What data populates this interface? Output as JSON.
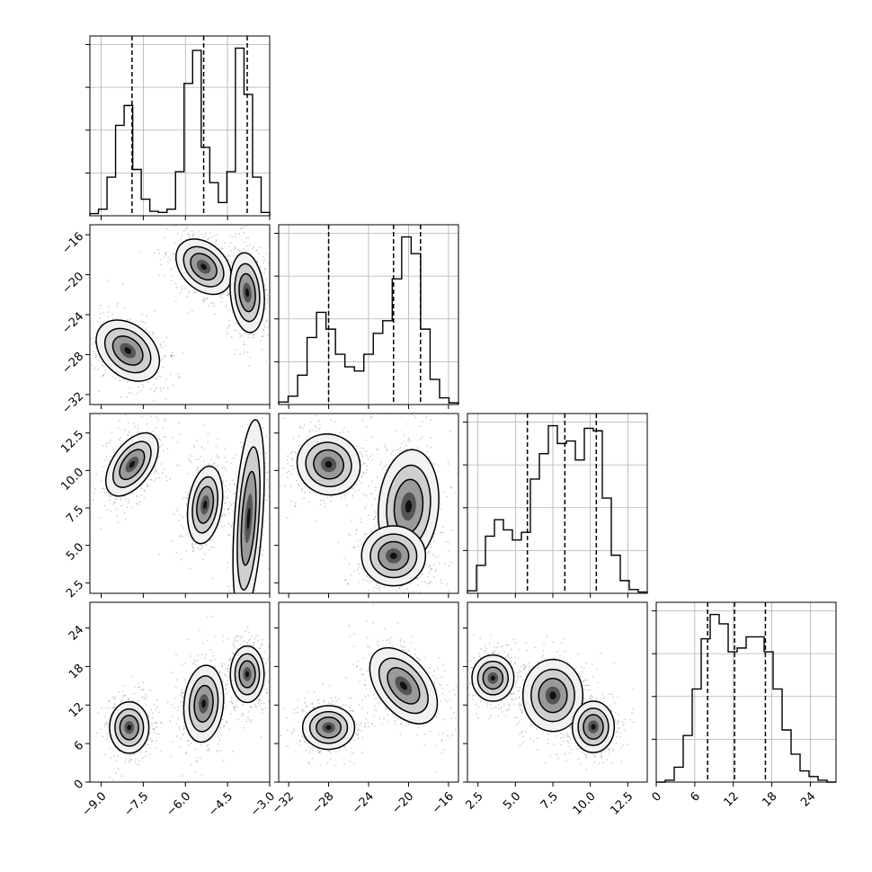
{
  "chart_data": {
    "type": "corner",
    "parameters": [
      {
        "range": [
          -9.4,
          -3.0
        ],
        "ticks": [
          -9.0,
          -7.5,
          -6.0,
          -4.5,
          -3.0
        ],
        "tick_labels": [
          "−9.0",
          "−7.5",
          "−6.0",
          "−4.5",
          "−3.0"
        ]
      },
      {
        "range": [
          -33,
          -15
        ],
        "ticks": [
          -32,
          -28,
          -24,
          -20,
          -16
        ],
        "tick_labels": [
          "−32",
          "−28",
          "−24",
          "−20",
          "−16"
        ]
      },
      {
        "range": [
          1.8,
          13.8
        ],
        "ticks": [
          2.5,
          5.0,
          7.5,
          10.0,
          12.5
        ],
        "tick_labels": [
          "2.5",
          "5.0",
          "7.5",
          "10.0",
          "12.5"
        ]
      },
      {
        "range": [
          0,
          28
        ],
        "ticks": [
          0,
          6,
          12,
          18,
          24
        ],
        "tick_labels": [
          "0",
          "6",
          "12",
          "18",
          "24"
        ]
      }
    ],
    "quantiles": [
      [
        -7.9,
        -5.35,
        -3.8
      ],
      [
        -28.0,
        -21.5,
        -18.8
      ],
      [
        5.8,
        8.3,
        10.4
      ],
      [
        8.0,
        12.2,
        17.0
      ]
    ],
    "histograms": [
      {
        "edges_range": [
          -9.4,
          -3.0
        ],
        "counts": [
          2,
          6,
          35,
          82,
          100,
          42,
          15,
          4,
          3,
          6,
          40,
          120,
          150,
          62,
          30,
          12,
          40,
          152,
          110,
          35,
          3
        ]
      },
      {
        "edges_range": [
          -33,
          -15
        ],
        "counts": [
          3,
          10,
          35,
          80,
          110,
          90,
          60,
          45,
          40,
          60,
          85,
          100,
          150,
          200,
          180,
          90,
          30,
          8,
          2
        ]
      },
      {
        "edges_range": [
          1.8,
          13.8
        ],
        "counts": [
          2,
          22,
          45,
          58,
          50,
          42,
          48,
          90,
          110,
          132,
          118,
          120,
          105,
          130,
          128,
          75,
          30,
          10,
          3,
          1
        ]
      },
      {
        "edges_range": [
          0,
          28
        ],
        "counts": [
          0,
          1,
          8,
          25,
          50,
          77,
          90,
          85,
          70,
          72,
          78,
          78,
          70,
          50,
          28,
          15,
          6,
          3,
          1,
          0
        ]
      }
    ],
    "modes": [
      {
        "row": 1,
        "col": 0,
        "blobs": [
          {
            "cx": -8.05,
            "cy": -27.6,
            "sx": 0.45,
            "sy": 1.8,
            "rot": -48
          },
          {
            "cx": -5.35,
            "cy": -19.2,
            "sx": 0.4,
            "sy": 1.6,
            "rot": -45
          },
          {
            "cx": -3.8,
            "cy": -21.8,
            "sx": 0.3,
            "sy": 2.0,
            "rot": -5
          }
        ]
      },
      {
        "row": 2,
        "col": 0,
        "blobs": [
          {
            "cx": -7.9,
            "cy": 10.4,
            "sx": 0.35,
            "sy": 1.2,
            "rot": 35
          },
          {
            "cx": -5.3,
            "cy": 7.7,
            "sx": 0.3,
            "sy": 1.3,
            "rot": 8
          },
          {
            "cx": -3.75,
            "cy": 6.8,
            "sx": 0.25,
            "sy": 3.3,
            "rot": 4
          }
        ]
      },
      {
        "row": 2,
        "col": 1,
        "blobs": [
          {
            "cx": -28.0,
            "cy": 10.4,
            "sx": 1.6,
            "sy": 1.0,
            "rot": 30
          },
          {
            "cx": -20.0,
            "cy": 7.6,
            "sx": 1.5,
            "sy": 1.9,
            "rot": 5
          },
          {
            "cx": -21.5,
            "cy": 4.3,
            "sx": 1.6,
            "sy": 1.0,
            "rot": 0
          }
        ]
      },
      {
        "row": 3,
        "col": 0,
        "blobs": [
          {
            "cx": -8.0,
            "cy": 8.5,
            "sx": 0.35,
            "sy": 2.0,
            "rot": 0
          },
          {
            "cx": -5.35,
            "cy": 12.2,
            "sx": 0.35,
            "sy": 3.0,
            "rot": 5
          },
          {
            "cx": -3.8,
            "cy": 16.8,
            "sx": 0.3,
            "sy": 2.2,
            "rot": 0
          }
        ]
      },
      {
        "row": 3,
        "col": 1,
        "blobs": [
          {
            "cx": -28.0,
            "cy": 8.5,
            "sx": 1.3,
            "sy": 1.7,
            "rot": 0
          },
          {
            "cx": -20.5,
            "cy": 15.0,
            "sx": 1.3,
            "sy": 3.4,
            "rot": -38
          }
        ]
      },
      {
        "row": 3,
        "col": 2,
        "blobs": [
          {
            "cx": 3.5,
            "cy": 16.2,
            "sx": 0.7,
            "sy": 1.8,
            "rot": 0
          },
          {
            "cx": 7.5,
            "cy": 13.5,
            "sx": 1.0,
            "sy": 2.8,
            "rot": 0
          },
          {
            "cx": 10.2,
            "cy": 8.6,
            "sx": 0.7,
            "sy": 2.0,
            "rot": 0
          }
        ]
      }
    ]
  }
}
